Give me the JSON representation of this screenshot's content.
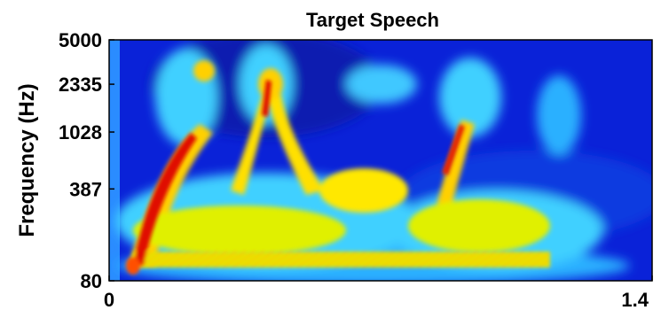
{
  "chart_data": {
    "type": "heatmap",
    "title": "Target Speech",
    "xlabel": "",
    "ylabel": "Frequency (Hz)",
    "xlim": [
      0,
      1.4
    ],
    "x_ticks": [
      "0",
      "1.4"
    ],
    "y_scale": "log",
    "ylim": [
      80,
      5000
    ],
    "y_ticks": [
      "80",
      "387",
      "1028",
      "2335",
      "5000"
    ],
    "colormap": "jet",
    "grid": false,
    "legend": "none",
    "colors": {
      "background_low": "#0a22d8",
      "mid": "#38c8ff",
      "high": "#ffe000",
      "peak": "#e01000"
    },
    "energy_regions": [
      {
        "t_start": 0.03,
        "t_end": 0.42,
        "f_low": 80,
        "f_high": 3600,
        "level": "high",
        "note": "first voiced segment with rising red harmonic"
      },
      {
        "t_start": 0.36,
        "t_end": 0.58,
        "f_low": 80,
        "f_high": 3800,
        "level": "high",
        "note": "second voiced segment, V-shaped formants"
      },
      {
        "t_start": 0.58,
        "t_end": 0.93,
        "f_low": 80,
        "f_high": 1100,
        "level": "medium",
        "note": "broad low-frequency energy"
      },
      {
        "t_start": 0.93,
        "t_end": 1.2,
        "f_low": 80,
        "f_high": 3600,
        "level": "high",
        "note": "third voiced segment with diagonal formant"
      },
      {
        "t_start": 1.15,
        "t_end": 1.33,
        "f_low": 80,
        "f_high": 3000,
        "level": "medium",
        "note": "trailing segment"
      }
    ]
  }
}
